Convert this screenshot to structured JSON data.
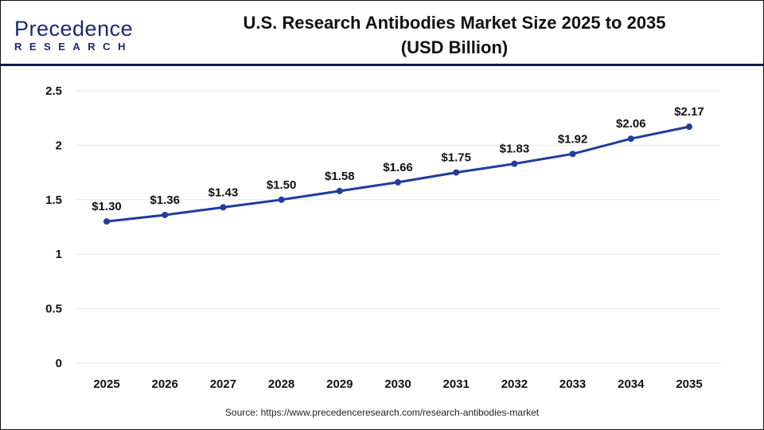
{
  "logo": {
    "brand_line1": "Precedence",
    "brand_line2": "RESEARCH"
  },
  "header": {
    "title_line1": "U.S. Research Antibodies Market Size 2025 to 2035",
    "title_line2": "(USD Billion)"
  },
  "source": "Source: https://www.precedenceresearch.com/research-antibodies-market",
  "chart_data": {
    "type": "line",
    "title": "U.S. Research Antibodies Market Size 2025 to 2035 (USD Billion)",
    "categories": [
      "2025",
      "2026",
      "2027",
      "2028",
      "2029",
      "2030",
      "2031",
      "2032",
      "2033",
      "2034",
      "2035"
    ],
    "series": [
      {
        "values": [
          1.3,
          1.36,
          1.43,
          1.5,
          1.58,
          1.66,
          1.75,
          1.83,
          1.92,
          2.06,
          2.17
        ],
        "color": "#1f3c9e"
      }
    ],
    "data_labels": [
      "$1.30",
      "$1.36",
      "$1.43",
      "$1.50",
      "$1.58",
      "$1.66",
      "$1.75",
      "$1.83",
      "$1.92",
      "$2.06",
      "$2.17"
    ],
    "yticks": [
      "0",
      "0.5",
      "1",
      "1.5",
      "2",
      "2.5"
    ],
    "ylim": [
      0,
      2.5
    ],
    "grid": true,
    "legend": "none"
  }
}
